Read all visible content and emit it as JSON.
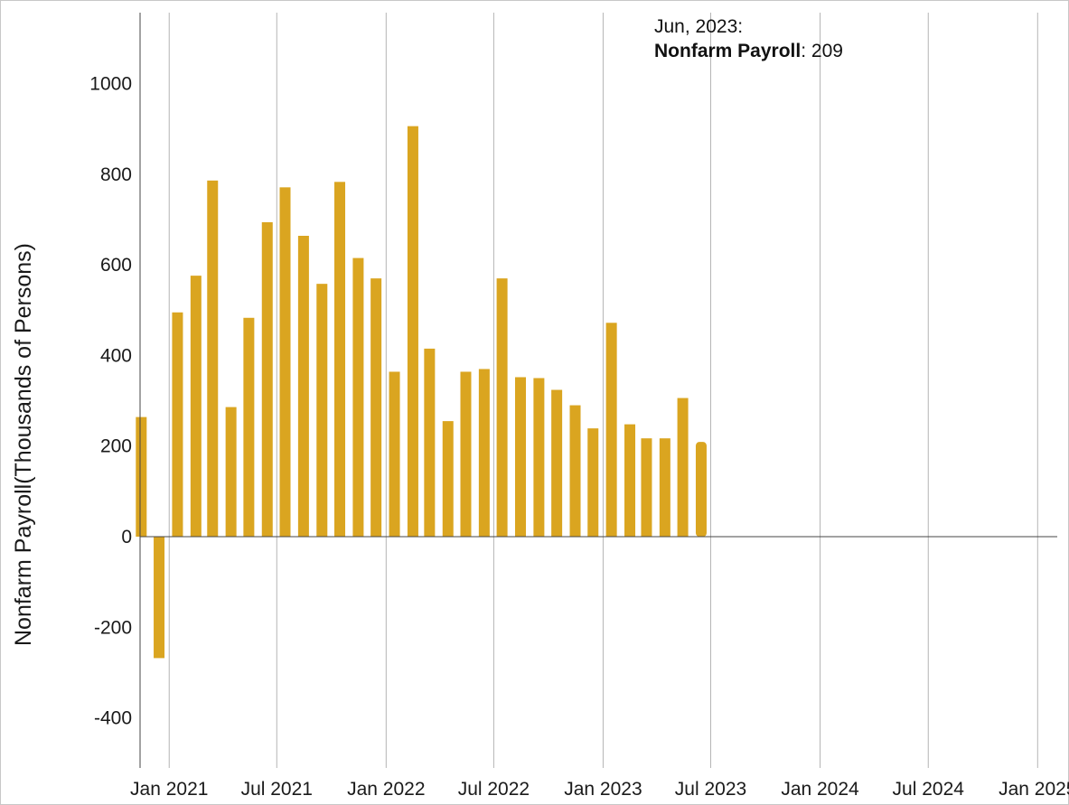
{
  "chart_data": {
    "type": "bar",
    "ylabel": "Nonfarm Payroll(Thousands of Persons)",
    "ylim": [
      -500,
      1150
    ],
    "yticks": [
      -400,
      -200,
      0,
      200,
      400,
      600,
      800,
      1000
    ],
    "xlim": [
      "2020-11-13",
      "2025-02-03"
    ],
    "xticks": [
      {
        "date": "2021-01-01",
        "label": "Jan 2021"
      },
      {
        "date": "2021-07-01",
        "label": "Jul 2021"
      },
      {
        "date": "2022-01-01",
        "label": "Jan 2022"
      },
      {
        "date": "2022-07-01",
        "label": "Jul 2022"
      },
      {
        "date": "2023-01-01",
        "label": "Jan 2023"
      },
      {
        "date": "2023-07-01",
        "label": "Jul 2023"
      },
      {
        "date": "2024-01-01",
        "label": "Jan 2024"
      },
      {
        "date": "2024-07-01",
        "label": "Jul 2024"
      },
      {
        "date": "2025-01-01",
        "label": "Jan 2025"
      }
    ],
    "grid": {
      "vertical": true,
      "horizontal": false
    },
    "series": [
      {
        "name": "Nonfarm Payroll",
        "color": "#DAA520",
        "points": [
          {
            "date": "2020-11",
            "value": 264
          },
          {
            "date": "2020-12",
            "value": -268
          },
          {
            "date": "2021-01",
            "value": 495
          },
          {
            "date": "2021-02",
            "value": 576
          },
          {
            "date": "2021-03",
            "value": 786
          },
          {
            "date": "2021-04",
            "value": 286
          },
          {
            "date": "2021-05",
            "value": 483
          },
          {
            "date": "2021-06",
            "value": 694
          },
          {
            "date": "2021-07",
            "value": 771
          },
          {
            "date": "2021-08",
            "value": 664
          },
          {
            "date": "2021-09",
            "value": 558
          },
          {
            "date": "2021-10",
            "value": 783
          },
          {
            "date": "2021-11",
            "value": 615
          },
          {
            "date": "2021-12",
            "value": 570
          },
          {
            "date": "2022-01",
            "value": 364
          },
          {
            "date": "2022-02",
            "value": 906
          },
          {
            "date": "2022-03",
            "value": 415
          },
          {
            "date": "2022-04",
            "value": 255
          },
          {
            "date": "2022-05",
            "value": 364
          },
          {
            "date": "2022-06",
            "value": 370
          },
          {
            "date": "2022-07",
            "value": 570
          },
          {
            "date": "2022-08",
            "value": 352
          },
          {
            "date": "2022-09",
            "value": 350
          },
          {
            "date": "2022-10",
            "value": 324
          },
          {
            "date": "2022-11",
            "value": 290
          },
          {
            "date": "2022-12",
            "value": 239
          },
          {
            "date": "2023-01",
            "value": 472
          },
          {
            "date": "2023-02",
            "value": 248
          },
          {
            "date": "2023-03",
            "value": 217
          },
          {
            "date": "2023-04",
            "value": 217
          },
          {
            "date": "2023-05",
            "value": 306
          },
          {
            "date": "2023-06",
            "value": 209
          }
        ]
      }
    ]
  },
  "tooltip": {
    "date_label": "Jun, 2023:",
    "series_name": "Nonfarm Payroll",
    "separator": ":",
    "value": "209",
    "highlight_date": "2023-06"
  }
}
